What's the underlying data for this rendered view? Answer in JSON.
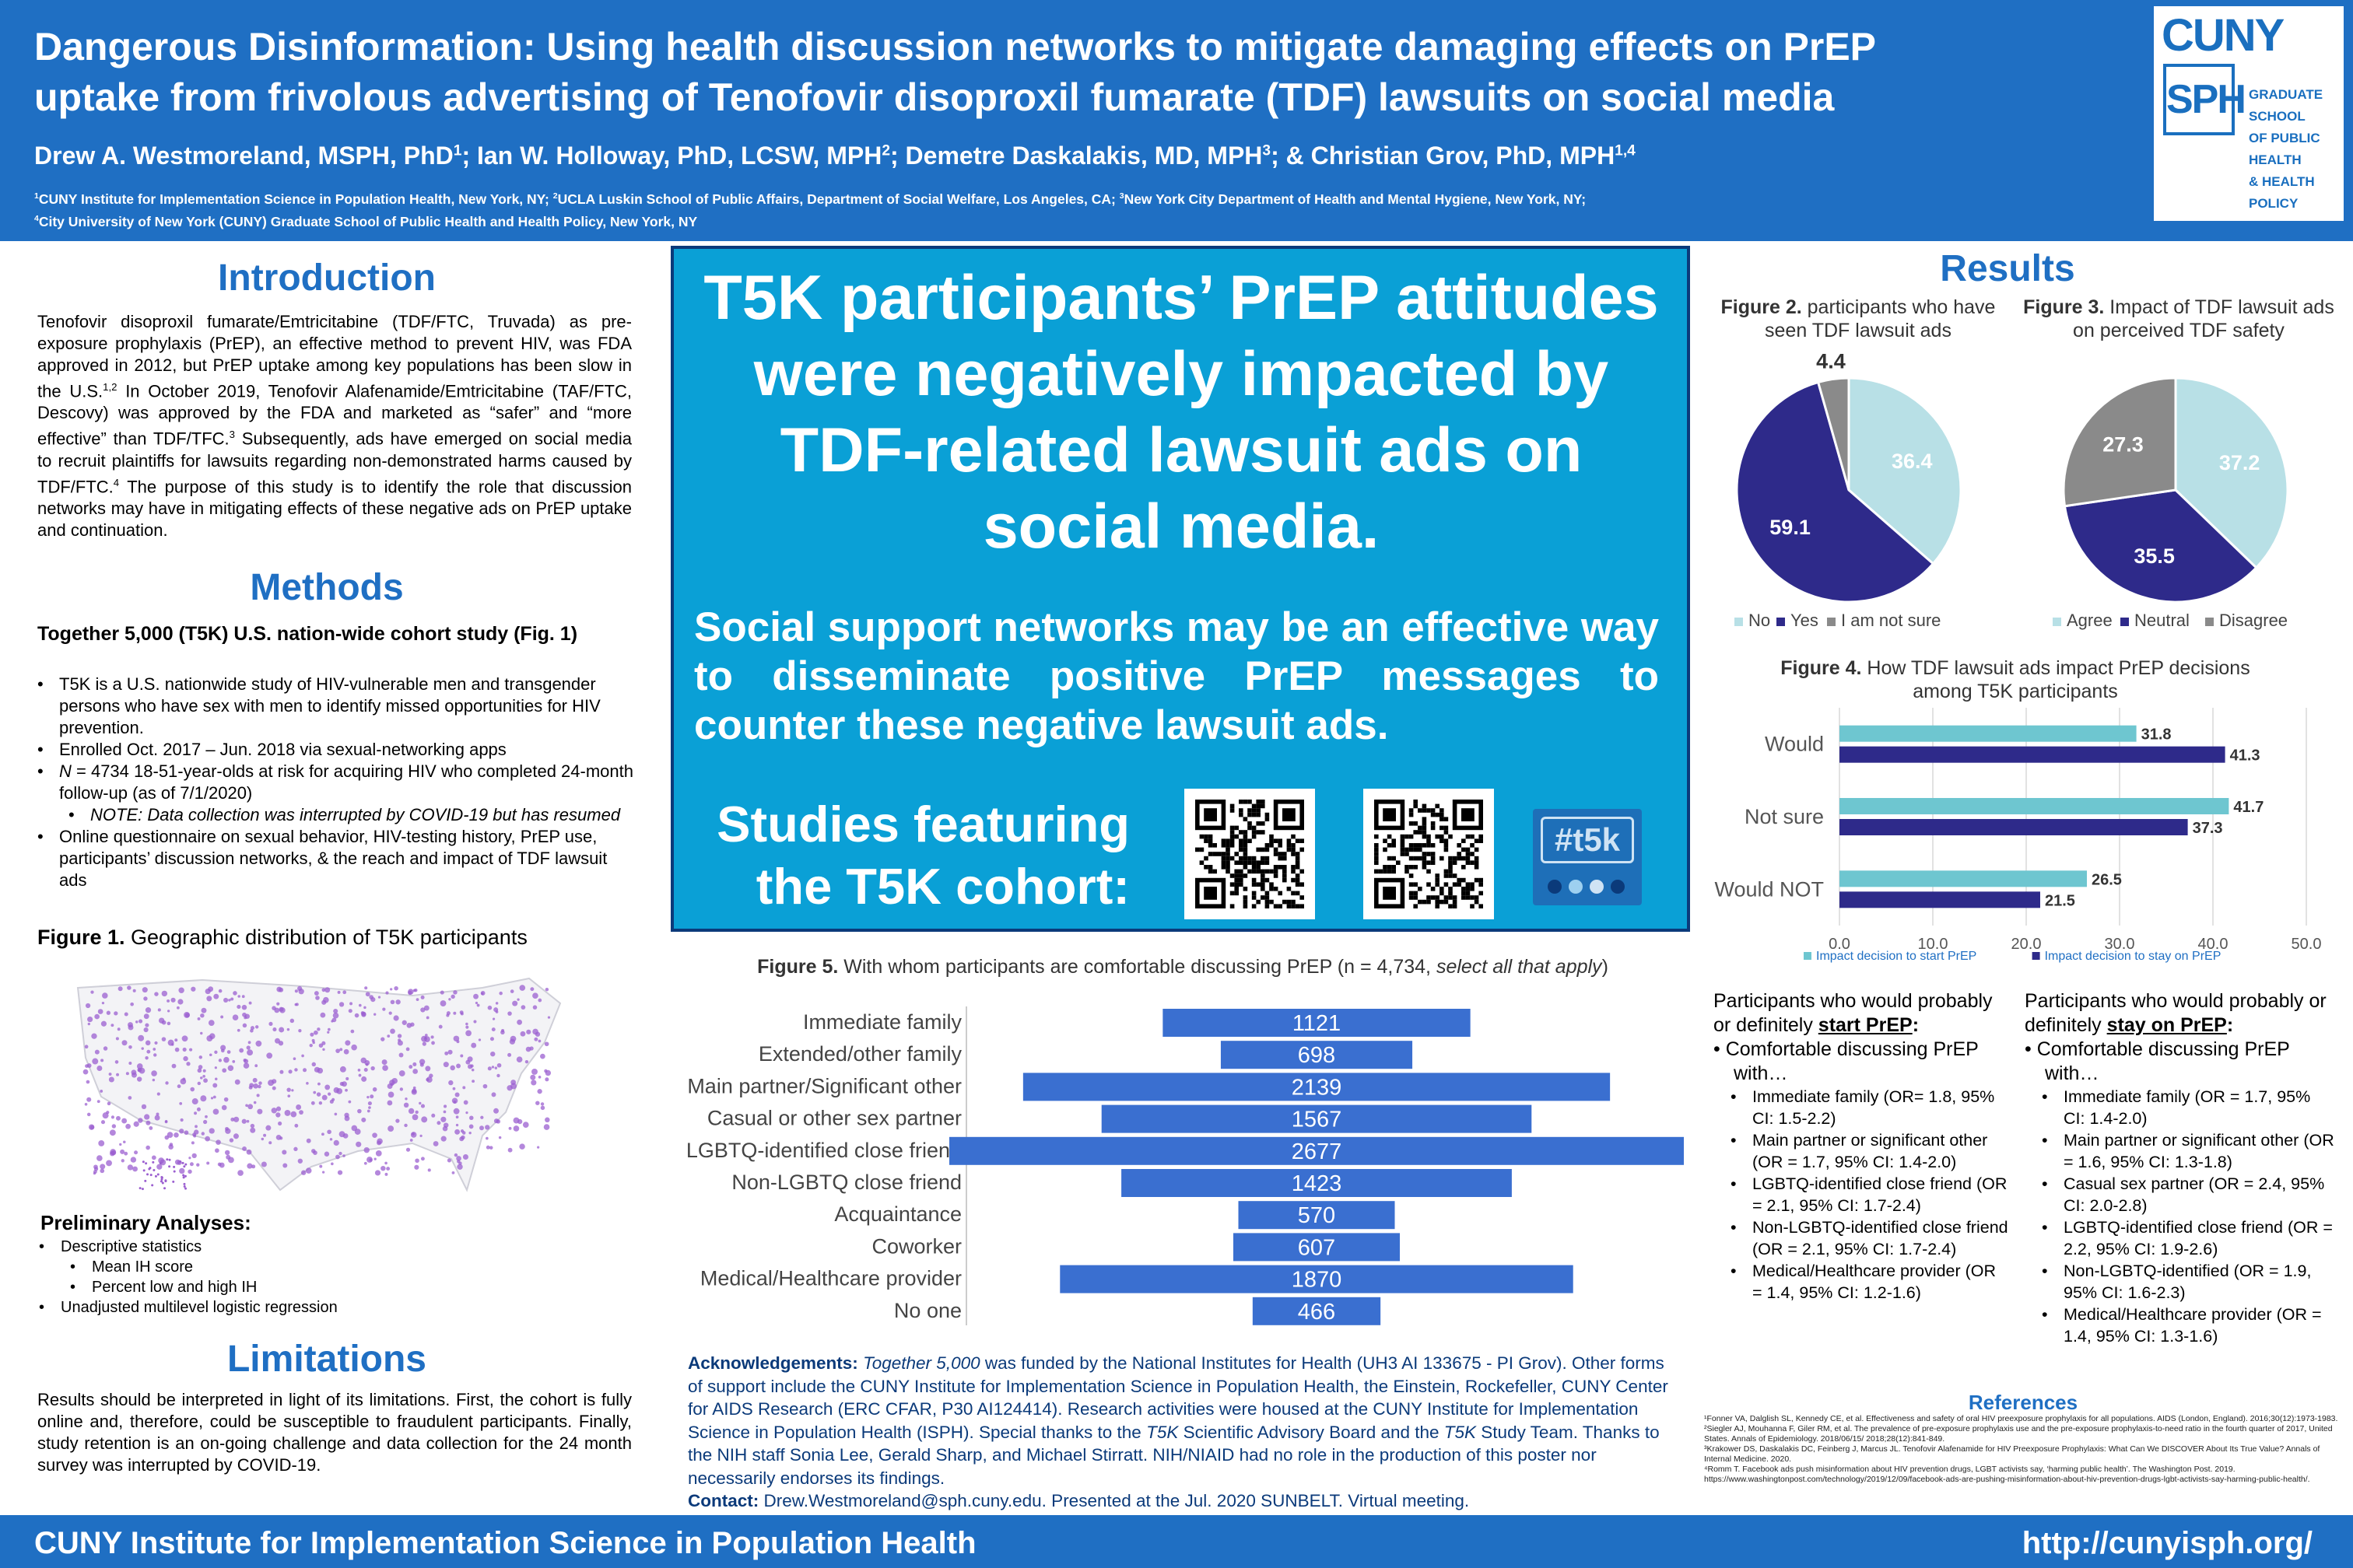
{
  "header": {
    "title_line1": "Dangerous Disinformation: Using health discussion networks to mitigate damaging effects on PrEP",
    "title_line2": "uptake from frivolous advertising of Tenofovir disoproxil fumarate (TDF) lawsuits on social media",
    "authors": [
      {
        "name": "Drew A. Westmoreland, MSPH, PhD",
        "sup": "1",
        "sep": "; "
      },
      {
        "name": "Ian W. Holloway, PhD, LCSW, MPH",
        "sup": "2",
        "sep": "; "
      },
      {
        "name": "Demetre Daskalakis, MD, MPH",
        "sup": "3",
        "sep": "; & "
      },
      {
        "name": "Christian Grov, PhD, MPH",
        "sup": "1,4",
        "sep": ""
      }
    ],
    "affiliations_line1": [
      {
        "sup": "1",
        "text": "CUNY Institute for Implementation Science in Population Health, New York, NY; "
      },
      {
        "sup": "2",
        "text": "UCLA Luskin School of Public Affairs, Department of Social Welfare, Los Angeles, CA; "
      },
      {
        "sup": "3",
        "text": "New York City Department of Health and Mental Hygiene, New York, NY;"
      }
    ],
    "affiliations_line2": [
      {
        "sup": "4",
        "text": "City University of New York (CUNY) Graduate School of Public Health and Health Policy, New York, NY"
      }
    ],
    "logo": {
      "cuny": "CUNY",
      "sph": "SPH",
      "school_lines": [
        "GRADUATE",
        "SCHOOL",
        "OF PUBLIC",
        "HEALTH",
        "& HEALTH",
        "POLICY"
      ]
    }
  },
  "introduction": {
    "heading": "Introduction",
    "text_parts": [
      "Tenofovir disoproxil fumarate/Emtricitabine (TDF/FTC, Truvada) as pre-exposure prophylaxis (PrEP), an effective method to prevent HIV, was FDA approved in 2012, but PrEP uptake among key populations has been slow in the U.S.",
      "1,2",
      " In October 2019, Tenofovir Alafenamide/Emtricitabine (TAF/FTC, Descovy) was approved by the FDA and marketed as “safer” and “more effective” than TDF/TFC.",
      "3",
      " Subsequently, ads have emerged on social media to recruit plaintiffs for lawsuits regarding non-demonstrated harms caused by TDF/FTC.",
      "4",
      " The purpose of this study is to identify the role that discussion networks may have in mitigating effects of these negative ads on PrEP uptake and continuation."
    ]
  },
  "methods": {
    "heading": "Methods",
    "subheading": "Together 5,000 (T5K) U.S. nation-wide cohort study (Fig. 1)",
    "bullets": [
      {
        "level": 1,
        "text": "T5K is a U.S. nationwide study of HIV-vulnerable men and transgender persons who have sex with men to identify missed opportunities for HIV prevention."
      },
      {
        "level": 1,
        "text": "Enrolled Oct. 2017 – Jun. 2018 via sexual-networking apps"
      },
      {
        "level": 1,
        "italic_prefix": "N",
        "text": " = 4734 18-51-year-olds at risk for acquiring HIV who completed 24-month follow-up (as of 7/1/2020)"
      },
      {
        "level": 2,
        "italic_text": "NOTE: Data collection was interrupted by COVID-19 but has resumed"
      },
      {
        "level": 1,
        "text": "Online questionnaire on sexual behavior, HIV-testing history, PrEP use, participants’ discussion networks, & the reach and impact of TDF lawsuit ads"
      }
    ],
    "figure1_caption_bold": "Figure 1.",
    "figure1_caption": " Geographic distribution of T5K participants",
    "prelim_heading": "Preliminary Analyses:",
    "prelim_items": [
      {
        "level": 1,
        "text": "Descriptive statistics"
      },
      {
        "level": 2,
        "text": "Mean IH score"
      },
      {
        "level": 2,
        "text": "Percent low and high IH"
      },
      {
        "level": 1,
        "text": "Unadjusted multilevel logistic regression"
      }
    ]
  },
  "limitations": {
    "heading": "Limitations",
    "text": "Results should be interpreted in light of its limitations. First, the cohort is fully online and, therefore, could be susceptible to fraudulent participants. Finally, study retention is an on-going challenge and data collection for the 24 month survey was interrupted by COVID-19."
  },
  "center": {
    "main_claim": "T5K participants’ PrEP attitudes were negatively impacted by TDF-related lawsuit ads on social media.",
    "sub_claim": "Social support networks may be an effective way to disseminate positive PrEP messages to counter these negative lawsuit ads.",
    "studies_label_line1": "Studies featuring",
    "studies_label_line2": "the T5K cohort:",
    "t5k_logo_text": "#t5k"
  },
  "results": {
    "heading": "Results",
    "fig2_caption_bold": "Figure 2.",
    "fig2_caption": " participants who have seen TDF lawsuit ads",
    "fig3_caption_bold": "Figure 3.",
    "fig3_caption": " Impact of TDF lawsuit ads on perceived TDF safety",
    "fig4_caption_bold": "Figure 4.",
    "fig4_caption": " How TDF lawsuit ads impact PrEP decisions among T5K participants",
    "fig5_caption_bold": "Figure 5.",
    "fig5_caption": " With whom participants are comfortable discussing PrEP (n = 4,734, ",
    "fig5_caption_italic": "select all that apply",
    "fig5_caption_end": ")"
  },
  "chart_data": [
    {
      "id": "fig2",
      "type": "pie",
      "categories": [
        "No",
        "Yes",
        "I am not sure"
      ],
      "values": [
        36.4,
        59.1,
        4.4
      ],
      "colors": [
        "#b8e0e6",
        "#2e2a8a",
        "#8a8a8a"
      ],
      "label_colors": [
        "#ffffff",
        "#ffffff",
        "#333333"
      ],
      "legend": "bottom"
    },
    {
      "id": "fig3",
      "type": "pie",
      "categories": [
        "Agree",
        "Neutral",
        "Disagree"
      ],
      "values": [
        37.2,
        35.5,
        27.3
      ],
      "colors": [
        "#b8e0e6",
        "#2e2a8a",
        "#8a8a8a"
      ],
      "label_colors": [
        "#ffffff",
        "#ffffff",
        "#ffffff"
      ],
      "legend": "bottom"
    },
    {
      "id": "fig4",
      "type": "bar",
      "orientation": "horizontal",
      "categories": [
        "Would",
        "Not sure",
        "Would NOT"
      ],
      "series": [
        {
          "name": "Impact decision to start PrEP",
          "values": [
            31.8,
            41.7,
            26.5
          ],
          "color": "#6ec6d0"
        },
        {
          "name": "Impact decision to stay on PrEP",
          "values": [
            41.3,
            37.3,
            21.5
          ],
          "color": "#2e2a8a"
        }
      ],
      "xlim": [
        0,
        50
      ],
      "xticks": [
        "0.0",
        "10.0",
        "20.0",
        "30.0",
        "40.0",
        "50.0"
      ],
      "grid": true,
      "legend": "bottom"
    },
    {
      "id": "fig5",
      "type": "bar",
      "orientation": "horizontal-centered",
      "categories": [
        "Immediate family",
        "Extended/other family",
        "Main partner/Significant other",
        "Casual or other sex partner",
        "LGBTQ-identified close friend",
        "Non-LGBTQ close friend",
        "Acquaintance",
        "Coworker",
        "Medical/Healthcare provider",
        "No one"
      ],
      "values": [
        1121,
        698,
        2139,
        1567,
        2677,
        1423,
        570,
        607,
        1870,
        466
      ],
      "color": "#3a6fd0"
    }
  ],
  "start_prep": {
    "heading_prefix": "Participants who would probably or definitely ",
    "heading_u": "start PrEP",
    "heading_suffix": ":",
    "lead": "Comfortable discussing PrEP with…",
    "items": [
      "Immediate family (OR= 1.8, 95% CI: 1.5-2.2)",
      "Main partner or significant other (OR = 1.7, 95% CI: 1.4-2.0)",
      "LGBTQ-identified close friend (OR = 2.1, 95% CI: 1.7-2.4)",
      "Non-LGBTQ-identified close friend (OR = 2.1, 95% CI: 1.7-2.4)",
      "Medical/Healthcare provider (OR = 1.4, 95% CI: 1.2-1.6)"
    ]
  },
  "stay_prep": {
    "heading_prefix": "Participants who would probably or definitely ",
    "heading_u": "stay on PrEP",
    "heading_suffix": ":",
    "lead": "Comfortable discussing PrEP with…",
    "items": [
      "Immediate family (OR = 1.7, 95% CI: 1.4-2.0)",
      "Main partner or significant other (OR = 1.6, 95% CI: 1.3-1.8)",
      "Casual sex partner (OR = 2.4, 95% CI: 2.0-2.8)",
      "LGBTQ-identified close friend (OR = 2.2, 95% CI: 1.9-2.6)",
      "Non-LGBTQ-identified (OR = 1.9, 95% CI: 1.6-2.3)",
      "Medical/Healthcare provider (OR = 1.4, 95% CI: 1.3-1.6)"
    ]
  },
  "references": {
    "heading": "References",
    "items": [
      "¹Fonner VA, Dalglish SL, Kennedy CE, et al. Effectiveness and safety of oral HIV preexposure prophylaxis for all populations. AIDS (London, England). 2016;30(12):1973-1983.",
      "²Siegler AJ, Mouhanna F, Giler RM, et al. The prevalence of pre-exposure prophylaxis use and the pre-exposure prophylaxis-to-need ratio in the fourth quarter of 2017, United States. Annals of Epidemiology. 2018/06/15/ 2018;28(12):841-849.",
      "³Krakower DS, Daskalakis DC, Feinberg J, Marcus JL. Tenofovir Alafenamide for HIV Preexposure Prophylaxis: What Can We DISCOVER About Its True Value? Annals of Internal Medicine. 2020.",
      "⁴Romm T. Facebook ads push misinformation about HIV prevention drugs, LGBT activists say, ‘harming public health’. The Washington Post. 2019. https://www.washingtonpost.com/technology/2019/12/09/facebook-ads-are-pushing-misinformation-about-hiv-prevention-drugs-lgbt-activists-say-harming-public-health/."
    ]
  },
  "acknowledgements": {
    "label": "Acknowledgements:",
    "italic_study": "Together 5,000",
    "text1": " was funded by the National Institutes for Health (UH3 AI 133675 - PI Grov). Other forms of support include the CUNY Institute for Implementation Science in Population Health, the Einstein, Rockefeller, CUNY Center for AIDS Research (ERC CFAR, P30 AI124414). Research activities were housed at the CUNY Institute for Implementation Science in Population Health (ISPH). Special thanks to the ",
    "italic_t5k1": "T5K",
    "text2": " Scientific Advisory Board and the ",
    "italic_t5k2": "T5K",
    "text3": " Study Team. Thanks to the NIH staff Sonia Lee, Gerald Sharp, and Michael Stirratt. NIH/NIAID had no role in the production of this poster nor necessarily endorses its findings.",
    "contact_label": "Contact:",
    "contact_text": " Drew.Westmoreland@sph.cuny.edu. Presented at the Jul. 2020 SUNBELT. Virtual meeting."
  },
  "footer": {
    "left": "CUNY Institute for Implementation Science in Population Health",
    "right": "http://cunyisph.org/"
  }
}
